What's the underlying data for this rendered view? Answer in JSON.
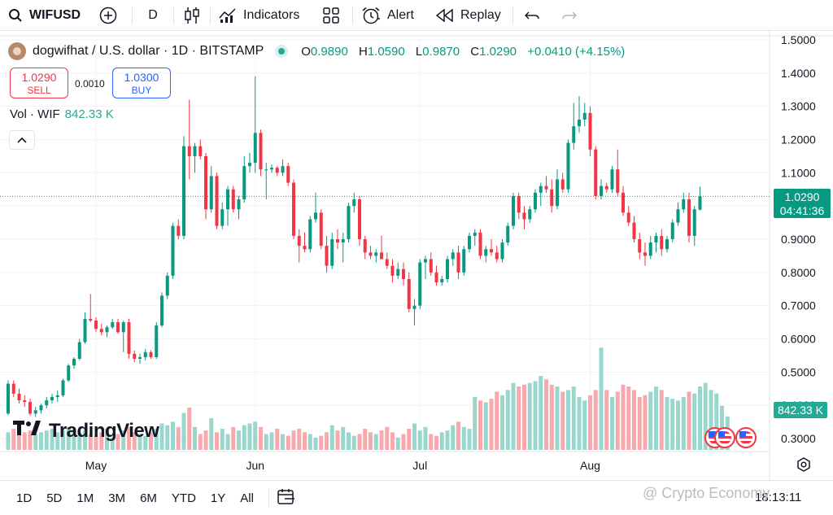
{
  "toolbar": {
    "symbol": "WIFUSD",
    "interval": "D",
    "indicators_label": "Indicators",
    "alert_label": "Alert",
    "replay_label": "Replay"
  },
  "legend": {
    "title": "dogwifhat / U.S. dollar · 1D · BITSTAMP",
    "o_key": "O",
    "o_val": "0.9890",
    "h_key": "H",
    "h_val": "1.0590",
    "l_key": "L",
    "l_val": "0.9870",
    "c_key": "C",
    "c_val": "1.0290",
    "change": "+0.0410 (+4.15%)"
  },
  "trade": {
    "sell_price": "1.0290",
    "sell_label": "SELL",
    "spread": "0.0010",
    "buy_price": "1.0300",
    "buy_label": "BUY"
  },
  "volume_legend": {
    "label": "Vol · WIF",
    "value": "842.33 K"
  },
  "price_tag": {
    "price": "1.0290",
    "countdown": "04:41:36"
  },
  "volume_tag": "842.33 K",
  "logo_text": "TradingView",
  "bottom": {
    "ranges": [
      "1D",
      "5D",
      "1M",
      "3M",
      "6M",
      "YTD",
      "1Y",
      "All"
    ],
    "clock": "18:13:11"
  },
  "watermark": "@ Crypto Economy",
  "colors": {
    "up": "#089981",
    "down": "#f23645",
    "vol_up": "#99d6cc",
    "vol_down": "#f7a9ae"
  },
  "chart_data": {
    "type": "candlestick",
    "price_ticks": [
      "1.5000",
      "1.4000",
      "1.3000",
      "1.2000",
      "1.1000",
      "1.0000",
      "0.9000",
      "0.8000",
      "0.7000",
      "0.6000",
      "0.5000",
      "0.4000",
      "0.3000"
    ],
    "month_labels": [
      {
        "label": "May",
        "index": 16
      },
      {
        "label": "Jun",
        "index": 45
      },
      {
        "label": "Jul",
        "index": 75
      },
      {
        "label": "Aug",
        "index": 106
      }
    ],
    "ylim": [
      0.26,
      1.52
    ],
    "candles": [
      {
        "o": 0.375,
        "h": 0.475,
        "l": 0.37,
        "c": 0.465
      },
      {
        "o": 0.465,
        "h": 0.475,
        "l": 0.425,
        "c": 0.435
      },
      {
        "o": 0.435,
        "h": 0.45,
        "l": 0.405,
        "c": 0.415
      },
      {
        "o": 0.415,
        "h": 0.43,
        "l": 0.395,
        "c": 0.41
      },
      {
        "o": 0.41,
        "h": 0.42,
        "l": 0.37,
        "c": 0.375
      },
      {
        "o": 0.375,
        "h": 0.395,
        "l": 0.365,
        "c": 0.385
      },
      {
        "o": 0.385,
        "h": 0.405,
        "l": 0.375,
        "c": 0.4
      },
      {
        "o": 0.4,
        "h": 0.425,
        "l": 0.39,
        "c": 0.415
      },
      {
        "o": 0.415,
        "h": 0.435,
        "l": 0.405,
        "c": 0.425
      },
      {
        "o": 0.425,
        "h": 0.445,
        "l": 0.41,
        "c": 0.43
      },
      {
        "o": 0.43,
        "h": 0.48,
        "l": 0.425,
        "c": 0.475
      },
      {
        "o": 0.475,
        "h": 0.525,
        "l": 0.47,
        "c": 0.52
      },
      {
        "o": 0.52,
        "h": 0.545,
        "l": 0.51,
        "c": 0.54
      },
      {
        "o": 0.54,
        "h": 0.6,
        "l": 0.535,
        "c": 0.59
      },
      {
        "o": 0.59,
        "h": 0.68,
        "l": 0.585,
        "c": 0.66
      },
      {
        "o": 0.66,
        "h": 0.735,
        "l": 0.65,
        "c": 0.655
      },
      {
        "o": 0.655,
        "h": 0.665,
        "l": 0.62,
        "c": 0.63
      },
      {
        "o": 0.63,
        "h": 0.645,
        "l": 0.61,
        "c": 0.62
      },
      {
        "o": 0.62,
        "h": 0.64,
        "l": 0.605,
        "c": 0.635
      },
      {
        "o": 0.635,
        "h": 0.66,
        "l": 0.63,
        "c": 0.65
      },
      {
        "o": 0.65,
        "h": 0.66,
        "l": 0.615,
        "c": 0.62
      },
      {
        "o": 0.62,
        "h": 0.655,
        "l": 0.56,
        "c": 0.65
      },
      {
        "o": 0.65,
        "h": 0.66,
        "l": 0.54,
        "c": 0.555
      },
      {
        "o": 0.555,
        "h": 0.565,
        "l": 0.53,
        "c": 0.54
      },
      {
        "o": 0.54,
        "h": 0.555,
        "l": 0.525,
        "c": 0.545
      },
      {
        "o": 0.545,
        "h": 0.57,
        "l": 0.535,
        "c": 0.56
      },
      {
        "o": 0.56,
        "h": 0.565,
        "l": 0.54,
        "c": 0.545
      },
      {
        "o": 0.545,
        "h": 0.65,
        "l": 0.54,
        "c": 0.64
      },
      {
        "o": 0.64,
        "h": 0.74,
        "l": 0.635,
        "c": 0.73
      },
      {
        "o": 0.73,
        "h": 0.8,
        "l": 0.72,
        "c": 0.79
      },
      {
        "o": 0.79,
        "h": 0.95,
        "l": 0.78,
        "c": 0.94
      },
      {
        "o": 0.94,
        "h": 0.96,
        "l": 0.9,
        "c": 0.91
      },
      {
        "o": 0.91,
        "h": 1.21,
        "l": 0.9,
        "c": 1.18
      },
      {
        "o": 1.18,
        "h": 1.32,
        "l": 1.08,
        "c": 1.15
      },
      {
        "o": 1.15,
        "h": 1.19,
        "l": 1.1,
        "c": 1.18
      },
      {
        "o": 1.18,
        "h": 1.2,
        "l": 1.14,
        "c": 1.15
      },
      {
        "o": 1.15,
        "h": 1.16,
        "l": 0.96,
        "c": 0.99
      },
      {
        "o": 0.99,
        "h": 1.12,
        "l": 0.98,
        "c": 1.09
      },
      {
        "o": 1.09,
        "h": 1.1,
        "l": 0.93,
        "c": 0.94
      },
      {
        "o": 0.94,
        "h": 1.01,
        "l": 0.93,
        "c": 0.99
      },
      {
        "o": 0.99,
        "h": 1.06,
        "l": 0.94,
        "c": 1.05
      },
      {
        "o": 1.05,
        "h": 1.06,
        "l": 0.98,
        "c": 0.99
      },
      {
        "o": 0.99,
        "h": 1.03,
        "l": 0.96,
        "c": 1.02
      },
      {
        "o": 1.02,
        "h": 1.15,
        "l": 1.01,
        "c": 1.12
      },
      {
        "o": 1.12,
        "h": 1.16,
        "l": 1.1,
        "c": 1.13
      },
      {
        "o": 1.13,
        "h": 1.39,
        "l": 1.1,
        "c": 1.22
      },
      {
        "o": 1.22,
        "h": 1.23,
        "l": 1.09,
        "c": 1.11
      },
      {
        "o": 1.11,
        "h": 1.13,
        "l": 1.02,
        "c": 1.11
      },
      {
        "o": 1.11,
        "h": 1.125,
        "l": 1.1,
        "c": 1.115
      },
      {
        "o": 1.115,
        "h": 1.12,
        "l": 1.09,
        "c": 1.1
      },
      {
        "o": 1.1,
        "h": 1.14,
        "l": 1.09,
        "c": 1.12
      },
      {
        "o": 1.12,
        "h": 1.13,
        "l": 1.06,
        "c": 1.07
      },
      {
        "o": 1.07,
        "h": 1.08,
        "l": 0.9,
        "c": 0.91
      },
      {
        "o": 0.91,
        "h": 0.93,
        "l": 0.83,
        "c": 0.88
      },
      {
        "o": 0.88,
        "h": 0.92,
        "l": 0.86,
        "c": 0.87
      },
      {
        "o": 0.87,
        "h": 0.97,
        "l": 0.86,
        "c": 0.96
      },
      {
        "o": 0.96,
        "h": 1.04,
        "l": 0.95,
        "c": 0.98
      },
      {
        "o": 0.98,
        "h": 0.99,
        "l": 0.87,
        "c": 0.88
      },
      {
        "o": 0.88,
        "h": 0.91,
        "l": 0.8,
        "c": 0.82
      },
      {
        "o": 0.82,
        "h": 0.92,
        "l": 0.81,
        "c": 0.9
      },
      {
        "o": 0.9,
        "h": 0.93,
        "l": 0.87,
        "c": 0.89
      },
      {
        "o": 0.89,
        "h": 0.92,
        "l": 0.83,
        "c": 0.9
      },
      {
        "o": 0.9,
        "h": 1.01,
        "l": 0.89,
        "c": 1.0
      },
      {
        "o": 1.0,
        "h": 1.04,
        "l": 0.98,
        "c": 1.02
      },
      {
        "o": 1.02,
        "h": 1.03,
        "l": 0.88,
        "c": 0.9
      },
      {
        "o": 0.9,
        "h": 0.91,
        "l": 0.84,
        "c": 0.86
      },
      {
        "o": 0.86,
        "h": 0.88,
        "l": 0.84,
        "c": 0.85
      },
      {
        "o": 0.85,
        "h": 0.87,
        "l": 0.83,
        "c": 0.86
      },
      {
        "o": 0.86,
        "h": 0.91,
        "l": 0.84,
        "c": 0.84
      },
      {
        "o": 0.84,
        "h": 0.86,
        "l": 0.81,
        "c": 0.82
      },
      {
        "o": 0.82,
        "h": 0.84,
        "l": 0.77,
        "c": 0.79
      },
      {
        "o": 0.79,
        "h": 0.83,
        "l": 0.78,
        "c": 0.81
      },
      {
        "o": 0.81,
        "h": 0.83,
        "l": 0.76,
        "c": 0.78
      },
      {
        "o": 0.78,
        "h": 0.8,
        "l": 0.68,
        "c": 0.69
      },
      {
        "o": 0.69,
        "h": 0.72,
        "l": 0.64,
        "c": 0.7
      },
      {
        "o": 0.7,
        "h": 0.84,
        "l": 0.69,
        "c": 0.83
      },
      {
        "o": 0.83,
        "h": 0.85,
        "l": 0.78,
        "c": 0.84
      },
      {
        "o": 0.84,
        "h": 0.86,
        "l": 0.79,
        "c": 0.8
      },
      {
        "o": 0.8,
        "h": 0.82,
        "l": 0.76,
        "c": 0.77
      },
      {
        "o": 0.77,
        "h": 0.79,
        "l": 0.76,
        "c": 0.78
      },
      {
        "o": 0.78,
        "h": 0.85,
        "l": 0.77,
        "c": 0.84
      },
      {
        "o": 0.84,
        "h": 0.87,
        "l": 0.82,
        "c": 0.86
      },
      {
        "o": 0.86,
        "h": 0.88,
        "l": 0.78,
        "c": 0.8
      },
      {
        "o": 0.8,
        "h": 0.88,
        "l": 0.79,
        "c": 0.87
      },
      {
        "o": 0.87,
        "h": 0.92,
        "l": 0.86,
        "c": 0.91
      },
      {
        "o": 0.91,
        "h": 0.93,
        "l": 0.88,
        "c": 0.92
      },
      {
        "o": 0.92,
        "h": 0.93,
        "l": 0.84,
        "c": 0.85
      },
      {
        "o": 0.85,
        "h": 0.88,
        "l": 0.83,
        "c": 0.87
      },
      {
        "o": 0.87,
        "h": 0.9,
        "l": 0.85,
        "c": 0.86
      },
      {
        "o": 0.86,
        "h": 0.88,
        "l": 0.83,
        "c": 0.84
      },
      {
        "o": 0.84,
        "h": 0.9,
        "l": 0.83,
        "c": 0.89
      },
      {
        "o": 0.89,
        "h": 0.95,
        "l": 0.88,
        "c": 0.94
      },
      {
        "o": 0.94,
        "h": 1.04,
        "l": 0.93,
        "c": 1.03
      },
      {
        "o": 1.03,
        "h": 1.04,
        "l": 0.96,
        "c": 0.98
      },
      {
        "o": 0.98,
        "h": 1.0,
        "l": 0.93,
        "c": 0.96
      },
      {
        "o": 0.96,
        "h": 1.0,
        "l": 0.95,
        "c": 0.99
      },
      {
        "o": 0.99,
        "h": 1.05,
        "l": 0.98,
        "c": 1.04
      },
      {
        "o": 1.04,
        "h": 1.07,
        "l": 1.0,
        "c": 1.06
      },
      {
        "o": 1.06,
        "h": 1.09,
        "l": 1.04,
        "c": 1.05
      },
      {
        "o": 1.05,
        "h": 1.08,
        "l": 0.98,
        "c": 1.0
      },
      {
        "o": 1.0,
        "h": 1.11,
        "l": 0.99,
        "c": 1.08
      },
      {
        "o": 1.08,
        "h": 1.1,
        "l": 1.04,
        "c": 1.05
      },
      {
        "o": 1.05,
        "h": 1.2,
        "l": 1.04,
        "c": 1.19
      },
      {
        "o": 1.19,
        "h": 1.31,
        "l": 1.17,
        "c": 1.24
      },
      {
        "o": 1.24,
        "h": 1.33,
        "l": 1.22,
        "c": 1.26
      },
      {
        "o": 1.26,
        "h": 1.31,
        "l": 1.24,
        "c": 1.28
      },
      {
        "o": 1.28,
        "h": 1.3,
        "l": 1.15,
        "c": 1.17
      },
      {
        "o": 1.17,
        "h": 1.18,
        "l": 1.02,
        "c": 1.03
      },
      {
        "o": 1.03,
        "h": 1.08,
        "l": 1.02,
        "c": 1.06
      },
      {
        "o": 1.06,
        "h": 1.07,
        "l": 1.04,
        "c": 1.05
      },
      {
        "o": 1.05,
        "h": 1.12,
        "l": 1.04,
        "c": 1.11
      },
      {
        "o": 1.11,
        "h": 1.17,
        "l": 1.03,
        "c": 1.04
      },
      {
        "o": 1.04,
        "h": 1.06,
        "l": 0.97,
        "c": 0.98
      },
      {
        "o": 0.98,
        "h": 1.0,
        "l": 0.94,
        "c": 0.95
      },
      {
        "o": 0.95,
        "h": 0.97,
        "l": 0.89,
        "c": 0.9
      },
      {
        "o": 0.9,
        "h": 0.92,
        "l": 0.84,
        "c": 0.86
      },
      {
        "o": 0.86,
        "h": 0.89,
        "l": 0.82,
        "c": 0.85
      },
      {
        "o": 0.85,
        "h": 0.91,
        "l": 0.84,
        "c": 0.89
      },
      {
        "o": 0.89,
        "h": 0.92,
        "l": 0.86,
        "c": 0.91
      },
      {
        "o": 0.91,
        "h": 0.93,
        "l": 0.85,
        "c": 0.87
      },
      {
        "o": 0.87,
        "h": 0.91,
        "l": 0.86,
        "c": 0.9
      },
      {
        "o": 0.9,
        "h": 0.96,
        "l": 0.89,
        "c": 0.95
      },
      {
        "o": 0.95,
        "h": 1.01,
        "l": 0.94,
        "c": 0.99
      },
      {
        "o": 0.99,
        "h": 1.04,
        "l": 0.98,
        "c": 1.02
      },
      {
        "o": 1.02,
        "h": 1.04,
        "l": 0.89,
        "c": 0.91
      },
      {
        "o": 0.91,
        "h": 1.0,
        "l": 0.88,
        "c": 0.99
      },
      {
        "o": 0.989,
        "h": 1.059,
        "l": 0.987,
        "c": 1.029
      }
    ],
    "volumes": [
      0.1,
      0.12,
      0.09,
      0.1,
      0.11,
      0.09,
      0.1,
      0.11,
      0.12,
      0.1,
      0.11,
      0.13,
      0.12,
      0.1,
      0.11,
      0.09,
      0.08,
      0.1,
      0.12,
      0.07,
      0.09,
      0.11,
      0.13,
      0.1,
      0.09,
      0.08,
      0.1,
      0.12,
      0.15,
      0.14,
      0.16,
      0.13,
      0.21,
      0.24,
      0.13,
      0.09,
      0.11,
      0.18,
      0.1,
      0.12,
      0.09,
      0.13,
      0.11,
      0.14,
      0.15,
      0.16,
      0.13,
      0.09,
      0.1,
      0.12,
      0.09,
      0.08,
      0.11,
      0.12,
      0.1,
      0.09,
      0.07,
      0.08,
      0.1,
      0.14,
      0.11,
      0.13,
      0.1,
      0.08,
      0.09,
      0.12,
      0.1,
      0.09,
      0.11,
      0.13,
      0.1,
      0.07,
      0.09,
      0.12,
      0.15,
      0.11,
      0.13,
      0.09,
      0.08,
      0.1,
      0.11,
      0.14,
      0.16,
      0.13,
      0.12,
      0.3,
      0.28,
      0.27,
      0.29,
      0.33,
      0.31,
      0.34,
      0.38,
      0.36,
      0.37,
      0.38,
      0.39,
      0.42,
      0.4,
      0.37,
      0.36,
      0.33,
      0.34,
      0.36,
      0.3,
      0.28,
      0.31,
      0.34,
      0.58,
      0.34,
      0.3,
      0.33,
      0.37,
      0.36,
      0.34,
      0.3,
      0.31,
      0.33,
      0.36,
      0.34,
      0.3,
      0.29,
      0.28,
      0.3,
      0.33,
      0.32,
      0.36,
      0.38,
      0.34,
      0.32,
      0.25,
      0.19
    ],
    "vol_max": 0.6
  }
}
